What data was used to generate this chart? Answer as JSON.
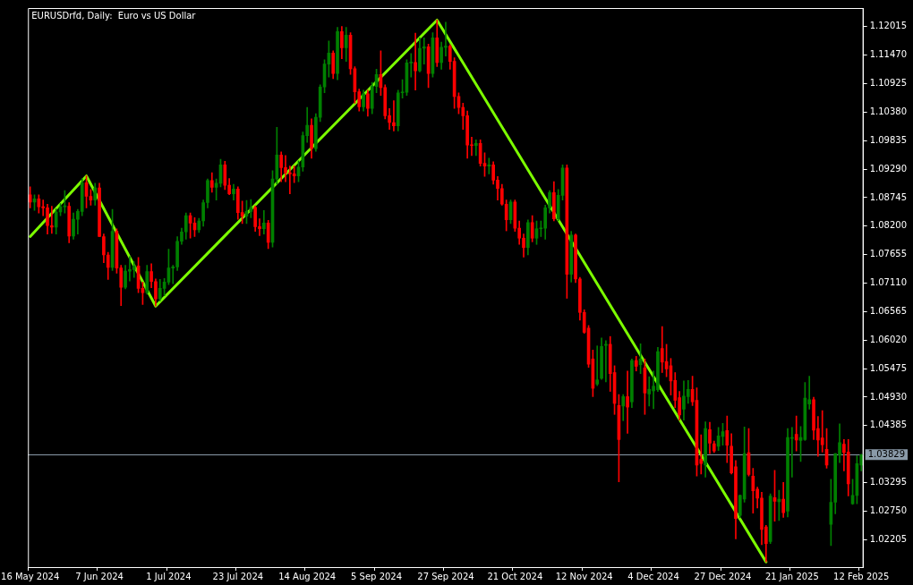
{
  "chart_data": {
    "type": "candlestick",
    "title": "EURUSDrfd, Daily:  Euro vs US Dollar",
    "categories": [
      "16 May 2024",
      null,
      null,
      null,
      null,
      null,
      null,
      null,
      null,
      null,
      null,
      null,
      null,
      null,
      null,
      null,
      "7 Jun 2024",
      null,
      null,
      null,
      null,
      null,
      null,
      null,
      null,
      null,
      null,
      null,
      null,
      null,
      null,
      null,
      "1 Jul 2024",
      null,
      null,
      null,
      null,
      null,
      null,
      null,
      null,
      null,
      null,
      null,
      null,
      null,
      null,
      null,
      "23 Jul 2024",
      null,
      null,
      null,
      null,
      null,
      null,
      null,
      null,
      null,
      null,
      null,
      null,
      null,
      null,
      null,
      "14 Aug 2024",
      null,
      null,
      null,
      null,
      null,
      null,
      null,
      null,
      null,
      null,
      null,
      null,
      null,
      null,
      null,
      "5 Sep 2024",
      null,
      null,
      null,
      null,
      null,
      null,
      null,
      null,
      null,
      null,
      null,
      null,
      null,
      null,
      null,
      "27 Sep 2024",
      null,
      null,
      null,
      null,
      null,
      null,
      null,
      null,
      null,
      null,
      null,
      null,
      null,
      null,
      null,
      "21 Oct 2024",
      null,
      null,
      null,
      null,
      null,
      null,
      null,
      null,
      null,
      null,
      null,
      null,
      null,
      null,
      null,
      "12 Nov 2024",
      null,
      null,
      null,
      null,
      null,
      null,
      null,
      null,
      null,
      null,
      null,
      null,
      null,
      null,
      null,
      "4 Dec 2024",
      null,
      null,
      null,
      null,
      null,
      null,
      null,
      null,
      null,
      null,
      null,
      null,
      null,
      null,
      null,
      "27 Dec 2024",
      null,
      null,
      null,
      null,
      null,
      null,
      null,
      null,
      null,
      null,
      null,
      null,
      null,
      null,
      null,
      "21 Jan 2025",
      null,
      null,
      null,
      null,
      null,
      null,
      null,
      null,
      null,
      null,
      null,
      null,
      null,
      null,
      null,
      "12 Feb 2025"
    ],
    "series": [
      {
        "type": "candlestick",
        "ohlc": [
          [
            1.088,
            1.0895,
            1.0855,
            1.0866
          ],
          [
            1.0866,
            1.088,
            1.085,
            1.0872
          ],
          [
            1.0872,
            1.088,
            1.0845,
            1.0857
          ],
          [
            1.0857,
            1.087,
            1.084,
            1.0855
          ],
          [
            1.0855,
            1.0862,
            1.0805,
            1.0821
          ],
          [
            1.0821,
            1.0858,
            1.0806,
            1.0818
          ],
          [
            1.0818,
            1.0853,
            1.0805,
            1.0847
          ],
          [
            1.0847,
            1.0863,
            1.084,
            1.0857
          ],
          [
            1.0857,
            1.0888,
            1.0845,
            1.0858
          ],
          [
            1.0858,
            1.0865,
            1.0788,
            1.0801
          ],
          [
            1.0801,
            1.0845,
            1.0795,
            1.0833
          ],
          [
            1.0833,
            1.0852,
            1.0805,
            1.0848
          ],
          [
            1.0848,
            1.0911,
            1.084,
            1.0903
          ],
          [
            1.0903,
            1.0916,
            1.0855,
            1.0877
          ],
          [
            1.0877,
            1.089,
            1.086,
            1.087
          ],
          [
            1.087,
            1.0902,
            1.086,
            1.0893
          ],
          [
            1.0893,
            1.0902,
            1.08,
            1.08
          ],
          [
            1.08,
            1.0805,
            1.075,
            1.0765
          ],
          [
            1.0765,
            1.077,
            1.0718,
            1.0741
          ],
          [
            1.0741,
            1.0852,
            1.0735,
            1.081
          ],
          [
            1.081,
            1.0815,
            1.073,
            1.074
          ],
          [
            1.074,
            1.0745,
            1.0668,
            1.0703
          ],
          [
            1.0703,
            1.0745,
            1.07,
            1.0734
          ],
          [
            1.0734,
            1.0762,
            1.0715,
            1.0737
          ],
          [
            1.0737,
            1.0752,
            1.0722,
            1.0744
          ],
          [
            1.0744,
            1.076,
            1.0693,
            1.0701
          ],
          [
            1.0701,
            1.0713,
            1.067,
            1.0693
          ],
          [
            1.0693,
            1.0745,
            1.069,
            1.0733
          ],
          [
            1.0733,
            1.0748,
            1.0702,
            1.0714
          ],
          [
            1.0714,
            1.0719,
            1.0667,
            1.0681
          ],
          [
            1.0681,
            1.0718,
            1.0677,
            1.0701
          ],
          [
            1.0701,
            1.072,
            1.0687,
            1.0713
          ],
          [
            1.0713,
            1.0776,
            1.0708,
            1.074
          ],
          [
            1.074,
            1.0745,
            1.071,
            1.0742
          ],
          [
            1.0742,
            1.08,
            1.0735,
            1.0791
          ],
          [
            1.0791,
            1.0816,
            1.0785,
            1.0809
          ],
          [
            1.0809,
            1.0845,
            1.0795,
            1.084
          ],
          [
            1.084,
            1.0845,
            1.0797,
            1.0826
          ],
          [
            1.0826,
            1.0836,
            1.08,
            1.0813
          ],
          [
            1.0813,
            1.0835,
            1.0808,
            1.083
          ],
          [
            1.083,
            1.087,
            1.082,
            1.0865
          ],
          [
            1.0865,
            1.091,
            1.0855,
            1.0907
          ],
          [
            1.0907,
            1.0922,
            1.0885,
            1.0894
          ],
          [
            1.0894,
            1.091,
            1.087,
            1.0902
          ],
          [
            1.0902,
            1.0948,
            1.0895,
            1.0937
          ],
          [
            1.0937,
            1.0944,
            1.089,
            1.0898
          ],
          [
            1.0898,
            1.0911,
            1.088,
            1.0882
          ],
          [
            1.0882,
            1.09,
            1.087,
            1.0891
          ],
          [
            1.0891,
            1.0895,
            1.0833,
            1.0846
          ],
          [
            1.0846,
            1.0868,
            1.0825,
            1.0839
          ],
          [
            1.0839,
            1.0869,
            1.0825,
            1.0848
          ],
          [
            1.0848,
            1.0871,
            1.0836,
            1.0856
          ],
          [
            1.0856,
            1.0859,
            1.081,
            1.0819
          ],
          [
            1.0819,
            1.0834,
            1.0802,
            1.0815
          ],
          [
            1.0815,
            1.085,
            1.0805,
            1.0826
          ],
          [
            1.0826,
            1.0831,
            1.0777,
            1.0789
          ],
          [
            1.0789,
            1.0926,
            1.078,
            1.091
          ],
          [
            1.091,
            1.1009,
            1.09,
            1.0956
          ],
          [
            1.0956,
            1.0962,
            1.0905,
            1.0932
          ],
          [
            1.0932,
            1.0955,
            1.0905,
            1.0922
          ],
          [
            1.0922,
            1.0935,
            1.0882,
            1.092
          ],
          [
            1.092,
            1.0935,
            1.0903,
            1.0916
          ],
          [
            1.0916,
            1.0945,
            1.0905,
            1.0933
          ],
          [
            1.0933,
            1.1,
            1.0925,
            1.0993
          ],
          [
            1.0993,
            1.1047,
            1.098,
            1.1013
          ],
          [
            1.1013,
            1.1025,
            1.095,
            1.0968
          ],
          [
            1.0968,
            1.1035,
            1.0963,
            1.1028
          ],
          [
            1.1028,
            1.109,
            1.102,
            1.1086
          ],
          [
            1.1086,
            1.1138,
            1.1075,
            1.113
          ],
          [
            1.113,
            1.1174,
            1.1105,
            1.1151
          ],
          [
            1.1151,
            1.1155,
            1.1102,
            1.1112
          ],
          [
            1.1112,
            1.12,
            1.11,
            1.1192
          ],
          [
            1.1192,
            1.1202,
            1.114,
            1.1161
          ],
          [
            1.1161,
            1.12,
            1.1135,
            1.1185
          ],
          [
            1.1185,
            1.119,
            1.111,
            1.1121
          ],
          [
            1.1121,
            1.1125,
            1.1055,
            1.1077
          ],
          [
            1.1077,
            1.1082,
            1.104,
            1.1048
          ],
          [
            1.1048,
            1.108,
            1.104,
            1.1073
          ],
          [
            1.1073,
            1.108,
            1.103,
            1.1045
          ],
          [
            1.1045,
            1.1095,
            1.1035,
            1.1087
          ],
          [
            1.1087,
            1.112,
            1.1075,
            1.111
          ],
          [
            1.111,
            1.1155,
            1.107,
            1.1085
          ],
          [
            1.1085,
            1.109,
            1.1025,
            1.1031
          ],
          [
            1.1031,
            1.1045,
            1.1005,
            1.1018
          ],
          [
            1.1018,
            1.106,
            1.1002,
            1.1012
          ],
          [
            1.1012,
            1.108,
            1.1002,
            1.1075
          ],
          [
            1.1075,
            1.11,
            1.1065,
            1.1076
          ],
          [
            1.1076,
            1.1138,
            1.107,
            1.1132
          ],
          [
            1.1132,
            1.115,
            1.1105,
            1.1133
          ],
          [
            1.1133,
            1.1189,
            1.108,
            1.1117
          ],
          [
            1.1117,
            1.118,
            1.1115,
            1.116
          ],
          [
            1.116,
            1.118,
            1.113,
            1.1163
          ],
          [
            1.1163,
            1.1168,
            1.1085,
            1.1112
          ],
          [
            1.1112,
            1.119,
            1.1105,
            1.118
          ],
          [
            1.118,
            1.1214,
            1.1125,
            1.1133
          ],
          [
            1.1133,
            1.1172,
            1.112,
            1.1162
          ],
          [
            1.1162,
            1.121,
            1.1145,
            1.1164
          ],
          [
            1.1164,
            1.1167,
            1.112,
            1.1135
          ],
          [
            1.1135,
            1.1142,
            1.1045,
            1.1068
          ],
          [
            1.1068,
            1.1075,
            1.1035,
            1.1047
          ],
          [
            1.1047,
            1.1055,
            1.1005,
            1.1031
          ],
          [
            1.1031,
            1.104,
            1.095,
            1.0975
          ],
          [
            1.0975,
            1.099,
            1.0955,
            1.0974
          ],
          [
            1.0974,
            1.0985,
            1.0955,
            1.0978
          ],
          [
            1.0978,
            1.0985,
            1.0935,
            1.094
          ],
          [
            1.094,
            1.096,
            1.0915,
            1.0935
          ],
          [
            1.0935,
            1.095,
            1.092,
            1.0937
          ],
          [
            1.0937,
            1.0943,
            1.09,
            1.0908
          ],
          [
            1.0908,
            1.0915,
            1.087,
            1.0892
          ],
          [
            1.0892,
            1.09,
            1.086,
            1.0862
          ],
          [
            1.0862,
            1.087,
            1.0811,
            1.0832
          ],
          [
            1.0832,
            1.087,
            1.0825,
            1.0866
          ],
          [
            1.0866,
            1.087,
            1.081,
            1.0816
          ],
          [
            1.0816,
            1.083,
            1.0785,
            1.0797
          ],
          [
            1.0797,
            1.0805,
            1.0761,
            1.0779
          ],
          [
            1.0779,
            1.0832,
            1.0765,
            1.0827
          ],
          [
            1.0827,
            1.084,
            1.079,
            1.0797
          ],
          [
            1.0797,
            1.083,
            1.0785,
            1.0815
          ],
          [
            1.0815,
            1.083,
            1.08,
            1.0816
          ],
          [
            1.0816,
            1.086,
            1.0795,
            1.0855
          ],
          [
            1.0855,
            1.0888,
            1.0845,
            1.0884
          ],
          [
            1.0884,
            1.0905,
            1.083,
            1.0834
          ],
          [
            1.0834,
            1.089,
            1.083,
            1.0879
          ],
          [
            1.0879,
            1.0937,
            1.087,
            1.0931
          ],
          [
            1.0931,
            1.0937,
            1.0682,
            1.0728
          ],
          [
            1.0728,
            1.081,
            1.0713,
            1.0803
          ],
          [
            1.0803,
            1.0805,
            1.0712,
            1.0719
          ],
          [
            1.0719,
            1.0722,
            1.064,
            1.0655
          ],
          [
            1.0655,
            1.066,
            1.0615,
            1.0617
          ],
          [
            1.0625,
            1.063,
            1.055,
            1.0556
          ],
          [
            1.0566,
            1.0583,
            1.0494,
            1.051
          ],
          [
            1.0518,
            1.0591,
            1.0515,
            1.0526
          ],
          [
            1.0529,
            1.0606,
            1.0527,
            1.059
          ],
          [
            1.0592,
            1.0601,
            1.0522,
            1.0594
          ],
          [
            1.0594,
            1.0609,
            1.0504,
            1.0538
          ],
          [
            1.054,
            1.0553,
            1.046,
            1.0481
          ],
          [
            1.0477,
            1.0498,
            1.0331,
            1.0412
          ],
          [
            1.0476,
            1.0498,
            1.0448,
            1.0494
          ],
          [
            1.0494,
            1.0543,
            1.0424,
            1.0474
          ],
          [
            1.0484,
            1.0566,
            1.0473,
            1.0563
          ],
          [
            1.0563,
            1.0571,
            1.0543,
            1.0552
          ],
          [
            1.0555,
            1.0595,
            1.0538,
            1.0566
          ],
          [
            1.0549,
            1.0566,
            1.046,
            1.0501
          ],
          [
            1.0499,
            1.0532,
            1.0476,
            1.0508
          ],
          [
            1.0505,
            1.0543,
            1.0471,
            1.0514
          ],
          [
            1.0507,
            1.0588,
            1.0504,
            1.058
          ],
          [
            1.0586,
            1.0628,
            1.054,
            1.056
          ],
          [
            1.0561,
            1.0594,
            1.0532,
            1.0547
          ],
          [
            1.0553,
            1.0567,
            1.0497,
            1.0524
          ],
          [
            1.0525,
            1.054,
            1.0473,
            1.0487
          ],
          [
            1.0492,
            1.0504,
            1.0449,
            1.0459
          ],
          [
            1.047,
            1.0524,
            1.0449,
            1.0495
          ],
          [
            1.0494,
            1.0525,
            1.0481,
            1.0508
          ],
          [
            1.0508,
            1.0533,
            1.0477,
            1.0484
          ],
          [
            1.0487,
            1.0511,
            1.0342,
            1.0363
          ],
          [
            1.0374,
            1.0421,
            1.0346,
            1.0366
          ],
          [
            1.0363,
            1.0446,
            1.034,
            1.0433
          ],
          [
            1.0431,
            1.0445,
            1.0385,
            1.0405
          ],
          [
            1.0404,
            1.0409,
            1.0387,
            1.039
          ],
          [
            1.0399,
            1.0435,
            1.0391,
            1.0419
          ],
          [
            1.0418,
            1.0443,
            1.0401,
            1.0427
          ],
          [
            1.0429,
            1.0457,
            1.0368,
            1.0401
          ],
          [
            1.0399,
            1.0423,
            1.0346,
            1.0348
          ],
          [
            1.036,
            1.0372,
            1.0222,
            1.0261
          ],
          [
            1.0267,
            1.0306,
            1.0262,
            1.0305
          ],
          [
            1.0298,
            1.0436,
            1.0292,
            1.0385
          ],
          [
            1.0387,
            1.0433,
            1.0342,
            1.0345
          ],
          [
            1.0342,
            1.0357,
            1.0271,
            1.0314
          ],
          [
            1.0317,
            1.0321,
            1.0281,
            1.03
          ],
          [
            1.03,
            1.0311,
            1.0211,
            1.024
          ],
          [
            1.0245,
            1.0248,
            1.0178,
            1.0213
          ],
          [
            1.0217,
            1.0308,
            1.0213,
            1.0304
          ],
          [
            1.0301,
            1.0353,
            1.0256,
            1.0294
          ],
          [
            1.0293,
            1.0315,
            1.0257,
            1.0298
          ],
          [
            1.0298,
            1.033,
            1.0263,
            1.0272
          ],
          [
            1.0275,
            1.0433,
            1.0264,
            1.0416
          ],
          [
            1.0414,
            1.0435,
            1.034,
            1.0416
          ],
          [
            1.0422,
            1.0457,
            1.039,
            1.0411
          ],
          [
            1.041,
            1.0437,
            1.037,
            1.0416
          ],
          [
            1.0412,
            1.0521,
            1.041,
            1.0491
          ],
          [
            1.048,
            1.0533,
            1.047,
            1.0488
          ],
          [
            1.0488,
            1.0493,
            1.0412,
            1.043
          ],
          [
            1.0433,
            1.0456,
            1.038,
            1.0411
          ],
          [
            1.0415,
            1.0467,
            1.0388,
            1.0402
          ],
          [
            1.0393,
            1.0433,
            1.0357,
            1.0363
          ],
          [
            1.025,
            1.0336,
            1.0209,
            1.0292
          ],
          [
            1.0292,
            1.0385,
            1.027,
            1.0385
          ],
          [
            1.0382,
            1.0442,
            1.0368,
            1.0406
          ],
          [
            1.0403,
            1.0412,
            1.0352,
            1.0387
          ],
          [
            1.0388,
            1.0412,
            1.0304,
            1.0327
          ],
          [
            1.0289,
            1.0336,
            1.0288,
            1.0305
          ],
          [
            1.0305,
            1.0381,
            1.0289,
            1.0366
          ],
          [
            1.0363,
            1.0384,
            1.0352,
            1.0383
          ]
        ],
        "colors": [
          "#ff0000",
          "#008000",
          "#ff0000",
          "#ff0000",
          "#ff0000",
          "#ff0000",
          "#008000",
          "#008000",
          "#008000",
          "#ff0000",
          "#008000",
          "#008000",
          "#008000",
          "#ff0000",
          "#ff0000",
          "#008000",
          "#ff0000",
          "#ff0000",
          "#ff0000",
          "#008000",
          "#ff0000",
          "#ff0000",
          "#008000",
          "#008000",
          "#008000",
          "#ff0000",
          "#ff0000",
          "#008000",
          "#ff0000",
          "#ff0000",
          "#008000",
          "#008000",
          "#008000",
          "#008000",
          "#008000",
          "#008000",
          "#008000",
          "#ff0000",
          "#ff0000",
          "#008000",
          "#008000",
          "#008000",
          "#ff0000",
          "#008000",
          "#008000",
          "#ff0000",
          "#ff0000",
          "#008000",
          "#ff0000",
          "#ff0000",
          "#008000",
          "#008000",
          "#ff0000",
          "#ff0000",
          "#008000",
          "#ff0000",
          "#008000",
          "#008000",
          "#ff0000",
          "#ff0000",
          "#ff0000",
          "#ff0000",
          "#008000",
          "#008000",
          "#008000",
          "#ff0000",
          "#008000",
          "#008000",
          "#008000",
          "#008000",
          "#ff0000",
          "#008000",
          "#ff0000",
          "#008000",
          "#ff0000",
          "#ff0000",
          "#ff0000",
          "#008000",
          "#ff0000",
          "#008000",
          "#008000",
          "#ff0000",
          "#ff0000",
          "#ff0000",
          "#ff0000",
          "#008000",
          "#008000",
          "#008000",
          "#008000",
          "#ff0000",
          "#008000",
          "#008000",
          "#ff0000",
          "#008000",
          "#ff0000",
          "#008000",
          "#008000",
          "#ff0000",
          "#ff0000",
          "#ff0000",
          "#ff0000",
          "#ff0000",
          "#ff0000",
          "#008000",
          "#ff0000",
          "#ff0000",
          "#008000",
          "#ff0000",
          "#ff0000",
          "#ff0000",
          "#ff0000",
          "#008000",
          "#ff0000",
          "#ff0000",
          "#ff0000",
          "#008000",
          "#ff0000",
          "#008000",
          "#008000",
          "#008000",
          "#008000",
          "#ff0000",
          "#008000",
          "#008000",
          "#ff0000",
          "#008000",
          "#ff0000",
          "#ff0000",
          "#ff0000",
          "#ff0000",
          "#ff0000",
          "#008000",
          "#008000",
          "#008000",
          "#ff0000",
          "#ff0000",
          "#ff0000",
          "#008000",
          "#ff0000",
          "#008000",
          "#ff0000",
          "#008000",
          "#ff0000",
          "#008000",
          "#008000",
          "#008000",
          "#ff0000",
          "#ff0000",
          "#ff0000",
          "#ff0000",
          "#ff0000",
          "#008000",
          "#008000",
          "#ff0000",
          "#ff0000",
          "#ff0000",
          "#008000",
          "#ff0000",
          "#ff0000",
          "#008000",
          "#008000",
          "#ff0000",
          "#ff0000",
          "#ff0000",
          "#008000",
          "#008000",
          "#ff0000",
          "#ff0000",
          "#ff0000",
          "#ff0000",
          "#ff0000",
          "#008000",
          "#ff0000",
          "#008000",
          "#ff0000",
          "#008000",
          "#008000",
          "#ff0000",
          "#008000",
          "#008000",
          "#008000",
          "#ff0000",
          "#ff0000",
          "#ff0000",
          "#ff0000",
          "#008000",
          "#008000",
          "#008000",
          "#ff0000",
          "#ff0000",
          "#008000",
          "#008000",
          "#008000"
        ]
      },
      {
        "type": "line",
        "color": "#7cfc00",
        "values": [
          1.08,
          null,
          null,
          null,
          null,
          null,
          null,
          null,
          null,
          null,
          null,
          null,
          null,
          1.0916,
          null,
          null,
          null,
          null,
          null,
          null,
          null,
          null,
          null,
          null,
          null,
          null,
          null,
          null,
          null,
          1.0667,
          null,
          null,
          null,
          null,
          null,
          null,
          null,
          null,
          null,
          null,
          null,
          null,
          null,
          null,
          null,
          null,
          null,
          null,
          null,
          null,
          null,
          null,
          null,
          null,
          null,
          null,
          null,
          null,
          null,
          null,
          null,
          null,
          null,
          null,
          null,
          null,
          null,
          null,
          null,
          null,
          null,
          null,
          null,
          null,
          null,
          null,
          null,
          null,
          null,
          null,
          null,
          null,
          null,
          null,
          null,
          null,
          null,
          null,
          null,
          null,
          null,
          null,
          null,
          null,
          1.1214,
          null,
          null,
          null,
          null,
          null,
          null,
          null,
          null,
          null,
          null,
          null,
          null,
          null,
          null,
          null,
          null,
          null,
          null,
          null,
          null,
          null,
          null,
          null,
          null,
          null,
          null,
          null,
          null,
          null,
          null,
          null,
          null,
          null,
          null,
          null,
          null,
          null,
          null,
          null,
          null,
          null,
          null,
          null,
          null,
          null,
          null,
          null,
          null,
          null,
          null,
          null,
          null,
          null,
          null,
          null,
          null,
          null,
          null,
          null,
          null,
          null,
          null,
          null,
          null,
          null,
          null,
          null,
          null,
          null,
          null,
          null,
          null,
          null,
          null,
          null,
          1.0178,
          null,
          null,
          null,
          null,
          null,
          null,
          null,
          null,
          null,
          null,
          null,
          null,
          null,
          null,
          null,
          null,
          null,
          null,
          null,
          null,
          null,
          null
        ]
      }
    ],
    "ylim": [
      1.0168,
      1.1237
    ],
    "yticks": [
      {
        "value": 1.02205,
        "label": "1.02205"
      },
      {
        "value": 1.0275,
        "label": "1.02750"
      },
      {
        "value": 1.03295,
        "label": "1.03295"
      },
      {
        "value": 1.04385,
        "label": "1.04385"
      },
      {
        "value": 1.0493,
        "label": "1.04930"
      },
      {
        "value": 1.05475,
        "label": "1.05475"
      },
      {
        "value": 1.0602,
        "label": "1.06020"
      },
      {
        "value": 1.06565,
        "label": "1.06565"
      },
      {
        "value": 1.0711,
        "label": "1.07110"
      },
      {
        "value": 1.07655,
        "label": "1.07655"
      },
      {
        "value": 1.082,
        "label": "1.08200"
      },
      {
        "value": 1.08745,
        "label": "1.08745"
      },
      {
        "value": 1.0929,
        "label": "1.09290"
      },
      {
        "value": 1.09835,
        "label": "1.09835"
      },
      {
        "value": 1.1038,
        "label": "1.10380"
      },
      {
        "value": 1.10925,
        "label": "1.10925"
      },
      {
        "value": 1.1147,
        "label": "1.11470"
      },
      {
        "value": 1.12015,
        "label": "1.12015"
      }
    ],
    "ref_lines": [
      {
        "axis": "y",
        "value": 1.03829,
        "label": "1.03829",
        "color": "#8a9aa8"
      }
    ],
    "grid": false,
    "legend": false
  }
}
